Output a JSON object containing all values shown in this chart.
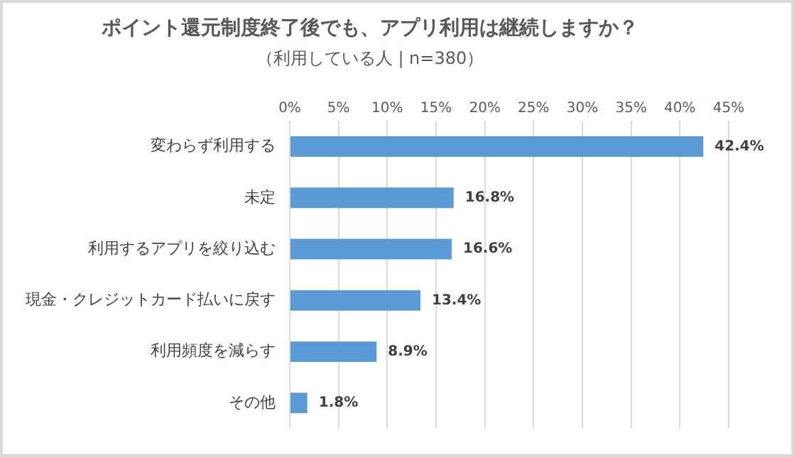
{
  "chart_data": {
    "type": "bar",
    "orientation": "horizontal",
    "title": "ポイント還元制度終了後でも、アプリ利用は継続しますか？",
    "subtitle": "（利用している人 | n=380）",
    "categories": [
      "変わらず利用する",
      "未定",
      "利用するアプリを絞り込む",
      "現金・クレジットカード払いに戻す",
      "利用頻度を減らす",
      "その他"
    ],
    "values": [
      42.4,
      16.8,
      16.6,
      13.4,
      8.9,
      1.8
    ],
    "value_labels": [
      "42.4%",
      "16.8%",
      "16.6%",
      "13.4%",
      "8.9%",
      "1.8%"
    ],
    "color": "#5b9bd5",
    "xlim": [
      0,
      45
    ],
    "xticks": [
      {
        "value": 0,
        "label": "0%"
      },
      {
        "value": 5,
        "label": "5%"
      },
      {
        "value": 10,
        "label": "10%"
      },
      {
        "value": 15,
        "label": "15%"
      },
      {
        "value": 20,
        "label": "20%"
      },
      {
        "value": 25,
        "label": "25%"
      },
      {
        "value": 30,
        "label": "30%"
      },
      {
        "value": 35,
        "label": "35%"
      },
      {
        "value": 40,
        "label": "40%"
      },
      {
        "value": 45,
        "label": "45%"
      }
    ],
    "grid": "x",
    "legend": false
  }
}
